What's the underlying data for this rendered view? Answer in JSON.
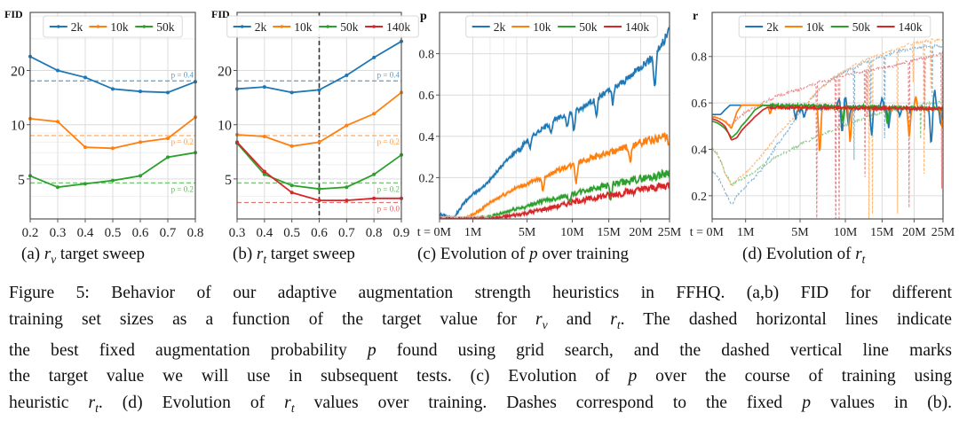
{
  "colors": {
    "2k": "#1f77b4",
    "10k": "#ff7f0e",
    "50k": "#2ca02c",
    "140k": "#d62728"
  },
  "chart_data": [
    {
      "id": "a",
      "type": "line",
      "ylabel": "FID",
      "yscale": "log",
      "ylim": [
        3.0,
        42
      ],
      "yticks": [
        5,
        10,
        20
      ],
      "xlim": [
        0.2,
        0.8
      ],
      "x": [
        0.2,
        0.3,
        0.4,
        0.5,
        0.6,
        0.7,
        0.8
      ],
      "xtick_labels": [
        "0.2",
        "0.3",
        "0.4",
        "0.5",
        "0.6",
        "0.7",
        "0.8"
      ],
      "grid": true,
      "legend": "top-center",
      "series": [
        {
          "name": "2k",
          "values": [
            23.9,
            20.0,
            18.3,
            15.8,
            15.3,
            15.1,
            17.3
          ]
        },
        {
          "name": "10k",
          "values": [
            10.8,
            10.4,
            7.5,
            7.4,
            8.0,
            8.4,
            11.0
          ]
        },
        {
          "name": "50k",
          "values": [
            5.2,
            4.5,
            4.7,
            4.9,
            5.2,
            6.6,
            7.0
          ]
        }
      ],
      "hlines": [
        {
          "series": "2k",
          "value": 17.5,
          "label": "p = 0.4"
        },
        {
          "series": "10k",
          "value": 8.7,
          "label": "p = 0.2"
        },
        {
          "series": "50k",
          "value": 4.75,
          "label": "p = 0.2"
        }
      ],
      "subcaption": {
        "prefix": "(a) ",
        "var": "r",
        "sub": "v",
        "suffix": " target sweep"
      }
    },
    {
      "id": "b",
      "type": "line",
      "ylabel": "FID",
      "yscale": "log",
      "ylim": [
        3.0,
        42
      ],
      "yticks": [
        5,
        10,
        20
      ],
      "xlim": [
        0.3,
        0.9
      ],
      "x": [
        0.3,
        0.4,
        0.5,
        0.6,
        0.7,
        0.8,
        0.9
      ],
      "xtick_labels": [
        "0.3",
        "0.4",
        "0.5",
        "0.6",
        "0.7",
        "0.8",
        "0.9"
      ],
      "grid": true,
      "legend": "top-center",
      "vline": {
        "value": 0.6,
        "style": "dashed"
      },
      "series": [
        {
          "name": "2k",
          "values": [
            15.8,
            16.2,
            15.1,
            15.6,
            18.8,
            23.6,
            29.0
          ]
        },
        {
          "name": "10k",
          "values": [
            8.8,
            8.6,
            7.6,
            8.0,
            9.9,
            11.5,
            15.1
          ]
        },
        {
          "name": "50k",
          "values": [
            7.9,
            5.3,
            4.6,
            4.4,
            4.5,
            5.3,
            6.8
          ]
        },
        {
          "name": "140k",
          "values": [
            8.0,
            5.5,
            4.2,
            3.8,
            3.8,
            3.9,
            3.9
          ]
        }
      ],
      "hlines": [
        {
          "series": "2k",
          "value": 17.5,
          "label": "p = 0.4"
        },
        {
          "series": "10k",
          "value": 8.7,
          "label": "p = 0.2"
        },
        {
          "series": "50k",
          "value": 4.75,
          "label": "p = 0.2"
        },
        {
          "series": "140k",
          "value": 3.7,
          "label": "p = 0.0"
        }
      ],
      "subcaption": {
        "prefix": "(b) ",
        "var": "r",
        "sub": "t",
        "suffix": " target sweep"
      }
    },
    {
      "id": "c",
      "type": "line",
      "ylabel": "p",
      "xscale": "power-0.6",
      "xlim": [
        0,
        25
      ],
      "xticks": [
        0,
        1,
        5,
        10,
        15,
        20,
        25
      ],
      "xtick_labels": [
        "t = 0M",
        "1M",
        "5M",
        "10M",
        "15M",
        "20M",
        "25M"
      ],
      "xminor": [
        2,
        3,
        4
      ],
      "ylim": [
        0,
        1.0
      ],
      "yticks": [
        0.2,
        0.4,
        0.6,
        0.8
      ],
      "ytick_labels": [
        "0.2",
        "0.4",
        "0.6",
        "0.8"
      ],
      "grid": true,
      "legend": "top-center",
      "series": [
        {
          "name": "2k",
          "x": [
            0,
            0.2,
            0.4,
            0.6,
            1,
            1.5,
            2,
            3,
            4,
            5,
            6,
            7,
            8,
            9,
            10,
            11,
            12,
            13,
            14,
            15,
            16,
            17,
            18,
            19,
            20,
            21,
            22,
            23,
            24,
            25
          ],
          "values": [
            0.02,
            0.0,
            0.04,
            0.08,
            0.12,
            0.15,
            0.19,
            0.27,
            0.33,
            0.38,
            0.42,
            0.45,
            0.48,
            0.5,
            0.52,
            0.53,
            0.56,
            0.58,
            0.6,
            0.62,
            0.64,
            0.66,
            0.68,
            0.71,
            0.74,
            0.76,
            0.78,
            0.82,
            0.86,
            0.92
          ],
          "dips": [
            [
              4.4,
              0.33
            ],
            [
              5.3,
              0.34
            ],
            [
              7.5,
              0.42
            ],
            [
              9.4,
              0.44
            ],
            [
              10.2,
              0.42
            ],
            [
              13.2,
              0.48
            ],
            [
              15.6,
              0.55
            ],
            [
              22.4,
              0.62
            ]
          ]
        },
        {
          "name": "10k",
          "x": [
            0,
            0.6,
            1,
            2,
            3,
            4,
            5,
            6,
            7,
            8,
            9,
            10,
            11,
            12,
            13,
            14,
            15,
            16,
            17,
            18,
            19,
            20,
            21,
            22,
            23,
            24,
            25
          ],
          "values": [
            0,
            0,
            0.02,
            0.08,
            0.12,
            0.15,
            0.17,
            0.19,
            0.21,
            0.23,
            0.25,
            0.26,
            0.28,
            0.29,
            0.3,
            0.31,
            0.32,
            0.33,
            0.34,
            0.35,
            0.36,
            0.37,
            0.38,
            0.38,
            0.39,
            0.4,
            0.41
          ],
          "dips": [
            [
              3.1,
              0.12
            ],
            [
              6.6,
              0.13
            ],
            [
              10.5,
              0.17
            ],
            [
              18.3,
              0.26
            ],
            [
              24.9,
              0.34
            ]
          ]
        },
        {
          "name": "50k",
          "x": [
            0,
            1,
            2,
            3,
            4,
            5,
            6,
            7,
            8,
            9,
            10,
            11,
            12,
            13,
            14,
            15,
            16,
            17,
            18,
            19,
            20,
            21,
            22,
            23,
            24,
            25
          ],
          "values": [
            0,
            0,
            0.01,
            0.03,
            0.05,
            0.06,
            0.08,
            0.09,
            0.1,
            0.11,
            0.12,
            0.13,
            0.14,
            0.15,
            0.16,
            0.165,
            0.17,
            0.175,
            0.18,
            0.19,
            0.195,
            0.2,
            0.205,
            0.21,
            0.22,
            0.23
          ],
          "dips": [
            [
              9.6,
              0.07
            ],
            [
              15.3,
              0.09
            ]
          ]
        },
        {
          "name": "140k",
          "x": [
            0,
            1,
            2,
            3,
            4,
            5,
            6,
            7,
            8,
            9,
            10,
            11,
            12,
            13,
            14,
            15,
            16,
            17,
            18,
            19,
            20,
            21,
            22,
            23,
            24,
            25
          ],
          "values": [
            0,
            0,
            0,
            0.01,
            0.02,
            0.03,
            0.04,
            0.05,
            0.06,
            0.07,
            0.08,
            0.09,
            0.095,
            0.1,
            0.11,
            0.115,
            0.12,
            0.125,
            0.13,
            0.135,
            0.14,
            0.145,
            0.15,
            0.155,
            0.16,
            0.165
          ],
          "dips": []
        }
      ],
      "subcaption": {
        "prefix": "(c) Evolution of ",
        "var": "p",
        "sub": "",
        "suffix": " over training"
      }
    },
    {
      "id": "d",
      "type": "line",
      "ylabel": "r",
      "xscale": "power-0.6",
      "xlim": [
        0,
        25
      ],
      "xticks": [
        0,
        1,
        5,
        10,
        15,
        20,
        25
      ],
      "xtick_labels": [
        "t = 0M",
        "1M",
        "5M",
        "10M",
        "15M",
        "20M",
        "25M"
      ],
      "xminor": [
        2,
        3,
        4
      ],
      "ylim": [
        0.1,
        0.99
      ],
      "yticks": [
        0.2,
        0.4,
        0.6,
        0.8
      ],
      "ytick_labels": [
        "0.2",
        "0.4",
        "0.6",
        "0.8"
      ],
      "grid": true,
      "legend": "top-center",
      "target": 0.6,
      "series": [
        {
          "name": "2k",
          "x": [
            0,
            0.1,
            0.2,
            0.35,
            0.5,
            0.8,
            1,
            2,
            3,
            5,
            25
          ],
          "values": [
            0.55,
            0.55,
            0.57,
            0.59,
            0.59,
            0.59,
            0.59,
            0.59,
            0.585,
            0.58,
            0.575
          ],
          "spikes": [
            [
              4.6,
              0.53
            ],
            [
              5.0,
              0.56
            ],
            [
              5.4,
              0.53
            ],
            [
              9.2,
              0.62
            ],
            [
              9.6,
              0.47
            ],
            [
              10.0,
              0.63
            ],
            [
              10.4,
              0.5
            ],
            [
              13.5,
              0.46
            ],
            [
              15.0,
              0.63
            ],
            [
              16.0,
              0.49
            ],
            [
              17.7,
              0.54
            ],
            [
              19.4,
              0.56
            ],
            [
              21.2,
              0.58
            ],
            [
              22.9,
              0.41
            ],
            [
              23.5,
              0.66
            ],
            [
              24.6,
              0.5
            ]
          ]
        },
        {
          "name": "10k",
          "x": [
            0,
            0.2,
            0.4,
            0.6,
            0.8,
            1,
            2,
            3,
            25
          ],
          "values": [
            0.54,
            0.52,
            0.49,
            0.56,
            0.59,
            0.59,
            0.59,
            0.58,
            0.575
          ],
          "spikes": [
            [
              2.5,
              0.55
            ],
            [
              7.0,
              0.37
            ],
            [
              7.6,
              0.6
            ],
            [
              10.6,
              0.42
            ],
            [
              16.4,
              0.57
            ],
            [
              19.2,
              0.45
            ],
            [
              20.3,
              0.63
            ],
            [
              24.9,
              0.48
            ]
          ]
        },
        {
          "name": "50k",
          "x": [
            0,
            0.2,
            0.4,
            0.6,
            0.8,
            1,
            1.5,
            2,
            25
          ],
          "values": [
            0.52,
            0.49,
            0.45,
            0.47,
            0.5,
            0.52,
            0.57,
            0.59,
            0.575
          ],
          "spikes": [
            [
              9.7,
              0.51
            ],
            [
              15.8,
              0.51
            ]
          ]
        },
        {
          "name": "140k",
          "x": [
            0,
            0.2,
            0.4,
            0.6,
            0.8,
            1,
            1.5,
            2,
            2.3,
            25
          ],
          "values": [
            0.53,
            0.5,
            0.44,
            0.45,
            0.48,
            0.5,
            0.54,
            0.57,
            0.58,
            0.575
          ],
          "spikes": []
        }
      ],
      "fixed_p_dashes": [
        {
          "name": "2k",
          "x": [
            0,
            0.2,
            0.4,
            0.6,
            1,
            2,
            3,
            5,
            7,
            9,
            11,
            13,
            15,
            17,
            19,
            21,
            23,
            25
          ],
          "values": [
            0.3,
            0.22,
            0.16,
            0.2,
            0.24,
            0.32,
            0.42,
            0.56,
            0.66,
            0.72,
            0.75,
            0.78,
            0.8,
            0.82,
            0.83,
            0.84,
            0.85,
            0.84
          ]
        },
        {
          "name": "10k",
          "x": [
            0,
            0.2,
            0.4,
            0.6,
            1,
            2,
            3,
            5,
            7,
            9,
            11,
            13,
            15,
            17,
            19,
            21,
            23,
            25
          ],
          "values": [
            0.4,
            0.3,
            0.24,
            0.27,
            0.3,
            0.38,
            0.46,
            0.57,
            0.66,
            0.72,
            0.76,
            0.79,
            0.81,
            0.83,
            0.85,
            0.86,
            0.87,
            0.87
          ]
        },
        {
          "name": "50k",
          "x": [
            0,
            0.2,
            0.4,
            0.6,
            1,
            2,
            3,
            5,
            7,
            9,
            11,
            13,
            15,
            17,
            19,
            21,
            23,
            25
          ],
          "values": [
            0.4,
            0.3,
            0.25,
            0.26,
            0.28,
            0.33,
            0.37,
            0.42,
            0.46,
            0.49,
            0.52,
            0.54,
            0.56,
            0.57,
            0.58,
            0.59,
            0.6,
            0.61
          ]
        },
        {
          "name": "140k",
          "x": [
            0,
            0.2,
            0.4,
            0.6,
            1,
            2,
            3,
            5,
            7,
            9,
            11,
            13,
            15,
            17,
            19,
            21,
            23,
            25
          ],
          "values": [
            0.54,
            0.52,
            0.5,
            0.53,
            0.56,
            0.6,
            0.63,
            0.66,
            0.69,
            0.71,
            0.73,
            0.74,
            0.75,
            0.76,
            0.78,
            0.79,
            0.8,
            0.82
          ]
        }
      ],
      "subcaption": {
        "prefix": "(d) Evolution of ",
        "var": "r",
        "sub": "t",
        "suffix": ""
      }
    }
  ],
  "caption": {
    "lines": [
      [
        "Figure 5: Behavior of our adaptive augmentation strength heuristics in FFHQ. (a,b) FID for different"
      ],
      [
        "training set sizes as a function of the target value for ",
        {
          "i": "r",
          "sub": "v"
        },
        " and ",
        {
          "i": "r",
          "sub": "t"
        },
        ". The dashed horizontal lines indicate"
      ],
      [
        "the best fixed augmentation probability ",
        {
          "i": "p"
        },
        " found using grid search, and the dashed vertical line marks"
      ],
      [
        "the target value we will use in subsequent tests. (c) Evolution of ",
        {
          "i": "p"
        },
        " over the course of training using"
      ],
      [
        "heuristic ",
        {
          "i": "r",
          "sub": "t"
        },
        ". (d) Evolution of ",
        {
          "i": "r",
          "sub": "t"
        },
        " values over training. Dashes correspond to the fixed ",
        {
          "i": "p"
        },
        " values in (b)."
      ]
    ]
  }
}
